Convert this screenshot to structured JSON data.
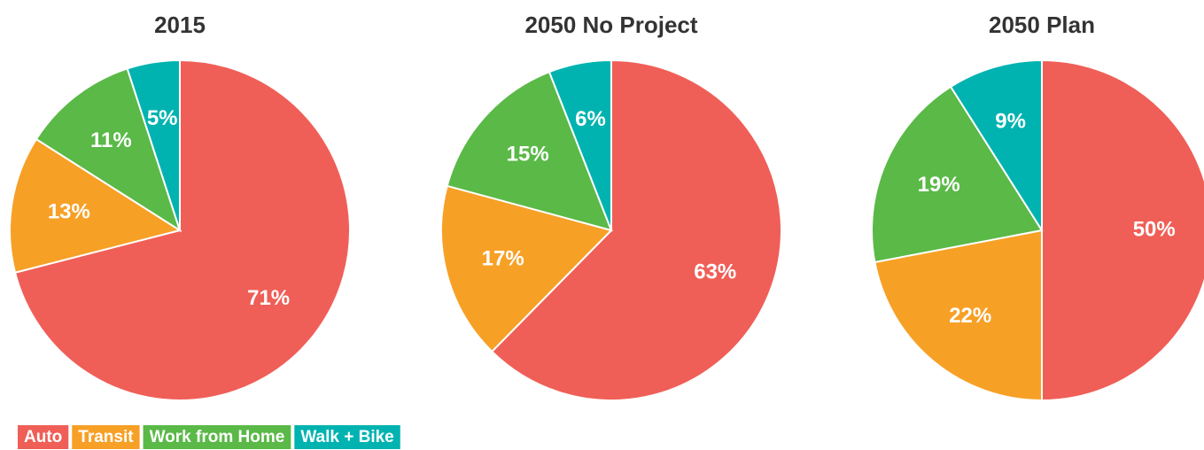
{
  "chart_data": [
    {
      "type": "pie",
      "title": "2015",
      "categories": [
        "Auto",
        "Transit",
        "Work from Home",
        "Walk + Bike"
      ],
      "values": [
        71,
        13,
        11,
        5
      ],
      "value_labels": [
        "71%",
        "13%",
        "11%",
        "5%"
      ],
      "colors": [
        "#ef5f57",
        "#f7a026",
        "#5ab947",
        "#00b3b0"
      ]
    },
    {
      "type": "pie",
      "title": "2050 No Project",
      "categories": [
        "Auto",
        "Transit",
        "Work from Home",
        "Walk + Bike"
      ],
      "values": [
        63,
        17,
        15,
        6
      ],
      "value_labels": [
        "63%",
        "17%",
        "15%",
        "6%"
      ],
      "colors": [
        "#ef5f57",
        "#f7a026",
        "#5ab947",
        "#00b3b0"
      ]
    },
    {
      "type": "pie",
      "title": "2050 Plan",
      "categories": [
        "Auto",
        "Transit",
        "Work from Home",
        "Walk + Bike"
      ],
      "values": [
        50,
        22,
        19,
        9
      ],
      "value_labels": [
        "50%",
        "22%",
        "19%",
        "9%"
      ],
      "colors": [
        "#ef5f57",
        "#f7a026",
        "#5ab947",
        "#00b3b0"
      ]
    }
  ]
}
